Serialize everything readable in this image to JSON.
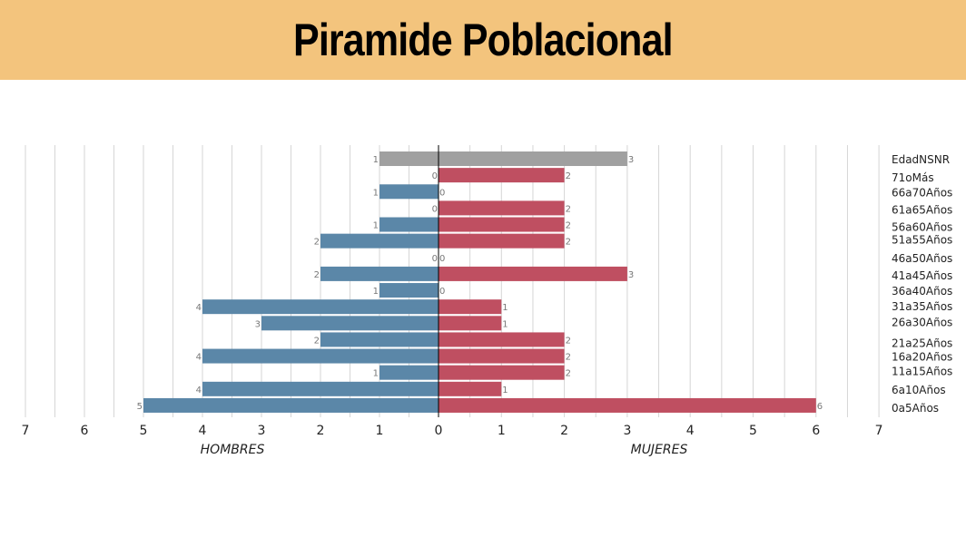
{
  "header": {
    "title": "Piramide Poblacional"
  },
  "chart_data": {
    "type": "bar",
    "orientation": "horizontal",
    "categories": [
      "EdadNSNR",
      "71oMás",
      "66a70Años",
      "61a65Años",
      "56a60Años",
      "51a55Años",
      "46a50Años",
      "41a45Años",
      "36a40Años",
      "31a35Años",
      "26a30Años",
      "21a25Años",
      "16a20Años",
      "11a15Años",
      "6a10Años",
      "0a5Años"
    ],
    "series": [
      {
        "name": "HOMBRES",
        "values": [
          1,
          0,
          1,
          0,
          1,
          2,
          0,
          2,
          1,
          4,
          3,
          2,
          4,
          1,
          4,
          5
        ],
        "color": "#5b87a8",
        "side": "left"
      },
      {
        "name": "MUJERES",
        "values": [
          3,
          2,
          0,
          2,
          2,
          2,
          0,
          3,
          0,
          1,
          1,
          2,
          2,
          2,
          1,
          6
        ],
        "color": "#bf4f61",
        "side": "right"
      }
    ],
    "special_category": {
      "category": "EdadNSNR",
      "color": "#a0a0a0"
    },
    "x_left_ticks": [
      "7",
      "6",
      "5",
      "4",
      "3",
      "2",
      "1",
      "0"
    ],
    "x_right_ticks": [
      "0",
      "1",
      "2",
      "3",
      "4",
      "5",
      "6",
      "7"
    ],
    "xlim": [
      -7,
      7
    ],
    "xlabel_left": "HOMBRES",
    "xlabel_right": "MUJERES",
    "grid": true,
    "data_labels": true
  }
}
